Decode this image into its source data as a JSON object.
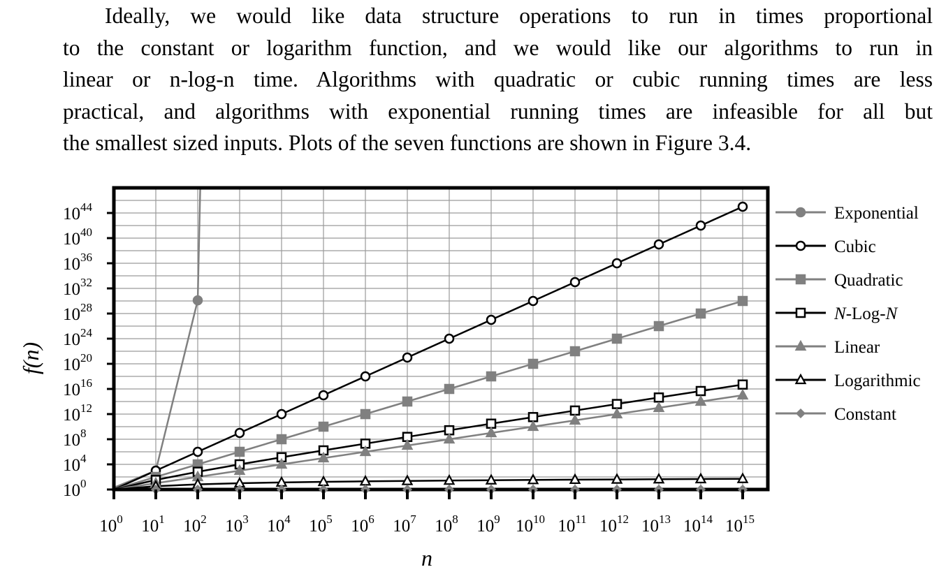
{
  "paragraph": {
    "lines": [
      "Ideally, we would like data structure operations to run in times proportional",
      "to the constant or logarithm function, and we would like our algorithms to run in",
      "linear or n-log-n time.  Algorithms with quadratic or cubic running times are less",
      "practical, and algorithms with exponential running times are infeasible for all but",
      "the smallest sized inputs. Plots of the seven functions are shown in Figure 3.4."
    ]
  },
  "chart_data": {
    "type": "line",
    "xlabel": "n",
    "ylabel": "f(n)",
    "xscale": "log",
    "yscale": "log",
    "x_ticks": [
      "10^0",
      "10^1",
      "10^2",
      "10^3",
      "10^4",
      "10^5",
      "10^6",
      "10^7",
      "10^8",
      "10^9",
      "10^10",
      "10^11",
      "10^12",
      "10^13",
      "10^14",
      "10^15"
    ],
    "y_ticks": [
      "10^0",
      "10^4",
      "10^8",
      "10^12",
      "10^16",
      "10^20",
      "10^24",
      "10^28",
      "10^32",
      "10^36",
      "10^40",
      "10^44"
    ],
    "x_exponents": [
      0,
      1,
      2,
      3,
      4,
      5,
      6,
      7,
      8,
      9,
      10,
      11,
      12,
      13,
      14,
      15
    ],
    "xlim_exp": [
      0,
      15.5
    ],
    "ylim_exp": [
      0,
      48
    ],
    "grid": true,
    "legend_position": "right",
    "series": [
      {
        "name": "Exponential",
        "marker": "circle",
        "fill": "#808080",
        "stroke": "#808080",
        "points": [
          [
            0,
            0.301
          ],
          [
            1,
            3.01
          ],
          [
            2,
            30.1
          ],
          [
            2.06,
            48
          ]
        ]
      },
      {
        "name": "Cubic",
        "marker": "circle",
        "fill": "#ffffff",
        "stroke": "#000000",
        "log_y": "3x"
      },
      {
        "name": "Quadratic",
        "marker": "square",
        "fill": "#808080",
        "stroke": "#808080",
        "log_y": "2x"
      },
      {
        "name": "N-Log-N",
        "marker": "square",
        "fill": "#ffffff",
        "stroke": "#000000",
        "log_y": "x+log10(x*3.3219)"
      },
      {
        "name": "Linear",
        "marker": "triangle",
        "fill": "#808080",
        "stroke": "#808080",
        "log_y": "x"
      },
      {
        "name": "Logarithmic",
        "marker": "triangle",
        "fill": "#ffffff",
        "stroke": "#000000",
        "log_y": "log10(x*3.3219)"
      },
      {
        "name": "Constant",
        "marker": "diamond",
        "fill": "#808080",
        "stroke": "#808080",
        "log_y": "0"
      }
    ],
    "colors": {
      "gray": "#808080",
      "black": "#000000",
      "grid": "#9a9a9a"
    }
  }
}
